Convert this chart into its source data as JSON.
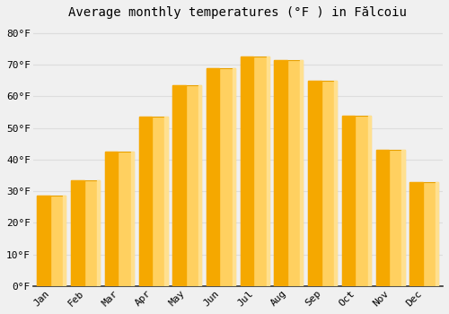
{
  "title": "Average monthly temperatures (°F ) in Fălcoiu",
  "months": [
    "Jan",
    "Feb",
    "Mar",
    "Apr",
    "May",
    "Jun",
    "Jul",
    "Aug",
    "Sep",
    "Oct",
    "Nov",
    "Dec"
  ],
  "values": [
    28.5,
    33.5,
    42.5,
    53.5,
    63.5,
    69.0,
    72.5,
    71.5,
    65.0,
    54.0,
    43.0,
    33.0
  ],
  "bar_color_left": "#F5A800",
  "bar_color_right": "#FFD060",
  "background_color": "#F0F0F0",
  "grid_color": "#DDDDDD",
  "ylim": [
    0,
    83
  ],
  "yticks": [
    0,
    10,
    20,
    30,
    40,
    50,
    60,
    70,
    80
  ],
  "ytick_labels": [
    "0°F",
    "10°F",
    "20°F",
    "30°F",
    "40°F",
    "50°F",
    "60°F",
    "70°F",
    "80°F"
  ],
  "title_fontsize": 10,
  "tick_fontsize": 8,
  "font_family": "monospace",
  "bar_edge_color": "#E8A000",
  "bar_width": 0.85
}
